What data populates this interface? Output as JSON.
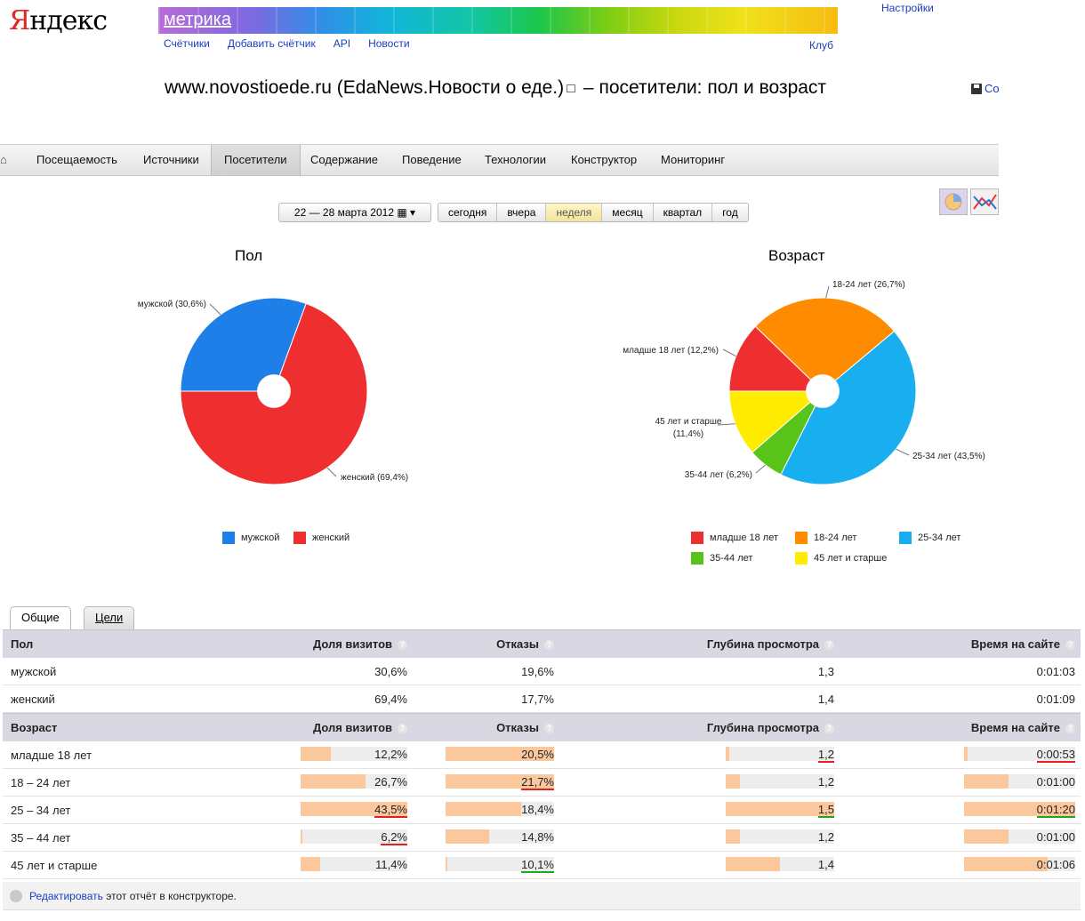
{
  "header": {
    "logo_first": "Я",
    "logo_rest": "ндекс",
    "product": "метрика",
    "nav": [
      "Счётчики",
      "Добавить счётчик",
      "API",
      "Новости"
    ],
    "settings": "Настройки",
    "club": "Клуб",
    "save_label": "Со"
  },
  "page": {
    "title_part1": "www.novostioede.ru (EdaNews.Новости о еде.)",
    "title_part2": " – посетители: пол и возраст"
  },
  "main_nav": {
    "home_icon": "home-icon",
    "items": [
      "Посещаемость",
      "Источники",
      "Посетители",
      "Содержание",
      "Поведение",
      "Технологии",
      "Конструктор",
      "Мониторинг"
    ],
    "active": "Посетители"
  },
  "period": {
    "date_range": "22 — 28 марта 2012",
    "buttons": [
      "сегодня",
      "вчера",
      "неделя",
      "месяц",
      "квартал",
      "год"
    ],
    "active": "неделя"
  },
  "colors": {
    "male": "#1f7fe8",
    "female": "#ef2f2f",
    "under18": "#ef2f2f",
    "a18_24": "#ff8c00",
    "a25_34": "#19aef0",
    "a35_44": "#58c41a",
    "a45plus": "#ffec00",
    "bar": "#fbc79d"
  },
  "chart_data": [
    {
      "type": "pie",
      "title": "Пол",
      "categories": [
        "мужской",
        "женский"
      ],
      "values": [
        30.6,
        69.4
      ],
      "labels": [
        "мужской (30,6%)",
        "женский (69,4%)"
      ],
      "legend": "bottom"
    },
    {
      "type": "pie",
      "title": "Возраст",
      "categories": [
        "младше 18 лет",
        "18-24 лет",
        "25-34 лет",
        "35-44 лет",
        "45 лет и старше"
      ],
      "values": [
        12.2,
        26.7,
        43.5,
        6.2,
        11.4
      ],
      "labels": [
        "младше 18 лет (12,2%)",
        "18-24 лет (26,7%)",
        "25-34 лет (43,5%)",
        "35-44 лет (6,2%)",
        "45 лет и старше (11,4%)"
      ],
      "legend": "bottom"
    }
  ],
  "tabs": [
    "Общие",
    "Цели"
  ],
  "gender_table": {
    "headers": [
      "Пол",
      "Доля визитов",
      "Отказы",
      "Глубина просмотра",
      "Время на сайте"
    ],
    "rows": [
      [
        "мужской",
        "30,6%",
        "19,6%",
        "1,3",
        "0:01:03"
      ],
      [
        "женский",
        "69,4%",
        "17,7%",
        "1,4",
        "0:01:09"
      ]
    ]
  },
  "age_table": {
    "headers": [
      "Возраст",
      "Доля визитов",
      "Отказы",
      "Глубина просмотра",
      "Время на сайте"
    ],
    "rows": [
      {
        "label": "младше 18 лет",
        "share": "12,2%",
        "bounce": "20,5%",
        "depth": "1,2",
        "time": "0:00:53",
        "share_fill": 0.28,
        "bounce_fill": 1.0,
        "depth_fill": 0.03,
        "time_fill": 0.03,
        "share_mark": "",
        "bounce_mark": "",
        "depth_mark": "red",
        "time_mark": "red"
      },
      {
        "label": "18 – 24 лет",
        "share": "26,7%",
        "bounce": "21,7%",
        "depth": "1,2",
        "time": "0:01:00",
        "share_fill": 0.61,
        "bounce_fill": 1.0,
        "depth_fill": 0.13,
        "time_fill": 0.4,
        "share_mark": "",
        "bounce_mark": "red",
        "depth_mark": "",
        "time_mark": ""
      },
      {
        "label": "25 – 34 лет",
        "share": "43,5%",
        "bounce": "18,4%",
        "depth": "1,5",
        "time": "0:01:20",
        "share_fill": 1.0,
        "bounce_fill": 0.7,
        "depth_fill": 1.0,
        "time_fill": 1.0,
        "share_mark": "red",
        "bounce_mark": "",
        "depth_mark": "green",
        "time_mark": "green"
      },
      {
        "label": "35 – 44 лет",
        "share": "6,2%",
        "bounce": "14,8%",
        "depth": "1,2",
        "time": "0:01:00",
        "share_fill": 0.02,
        "bounce_fill": 0.4,
        "depth_fill": 0.13,
        "time_fill": 0.4,
        "share_mark": "red",
        "bounce_mark": "",
        "depth_mark": "",
        "time_mark": ""
      },
      {
        "label": "45 лет и старше",
        "share": "11,4%",
        "bounce": "10,1%",
        "depth": "1,4",
        "time": "0:01:06",
        "share_fill": 0.18,
        "bounce_fill": 0.02,
        "depth_fill": 0.5,
        "time_fill": 0.75,
        "share_mark": "",
        "bounce_mark": "green",
        "depth_mark": "",
        "time_mark": ""
      }
    ]
  },
  "footer": {
    "link": "Редактировать",
    "text": " этот отчёт в конструкторе."
  }
}
